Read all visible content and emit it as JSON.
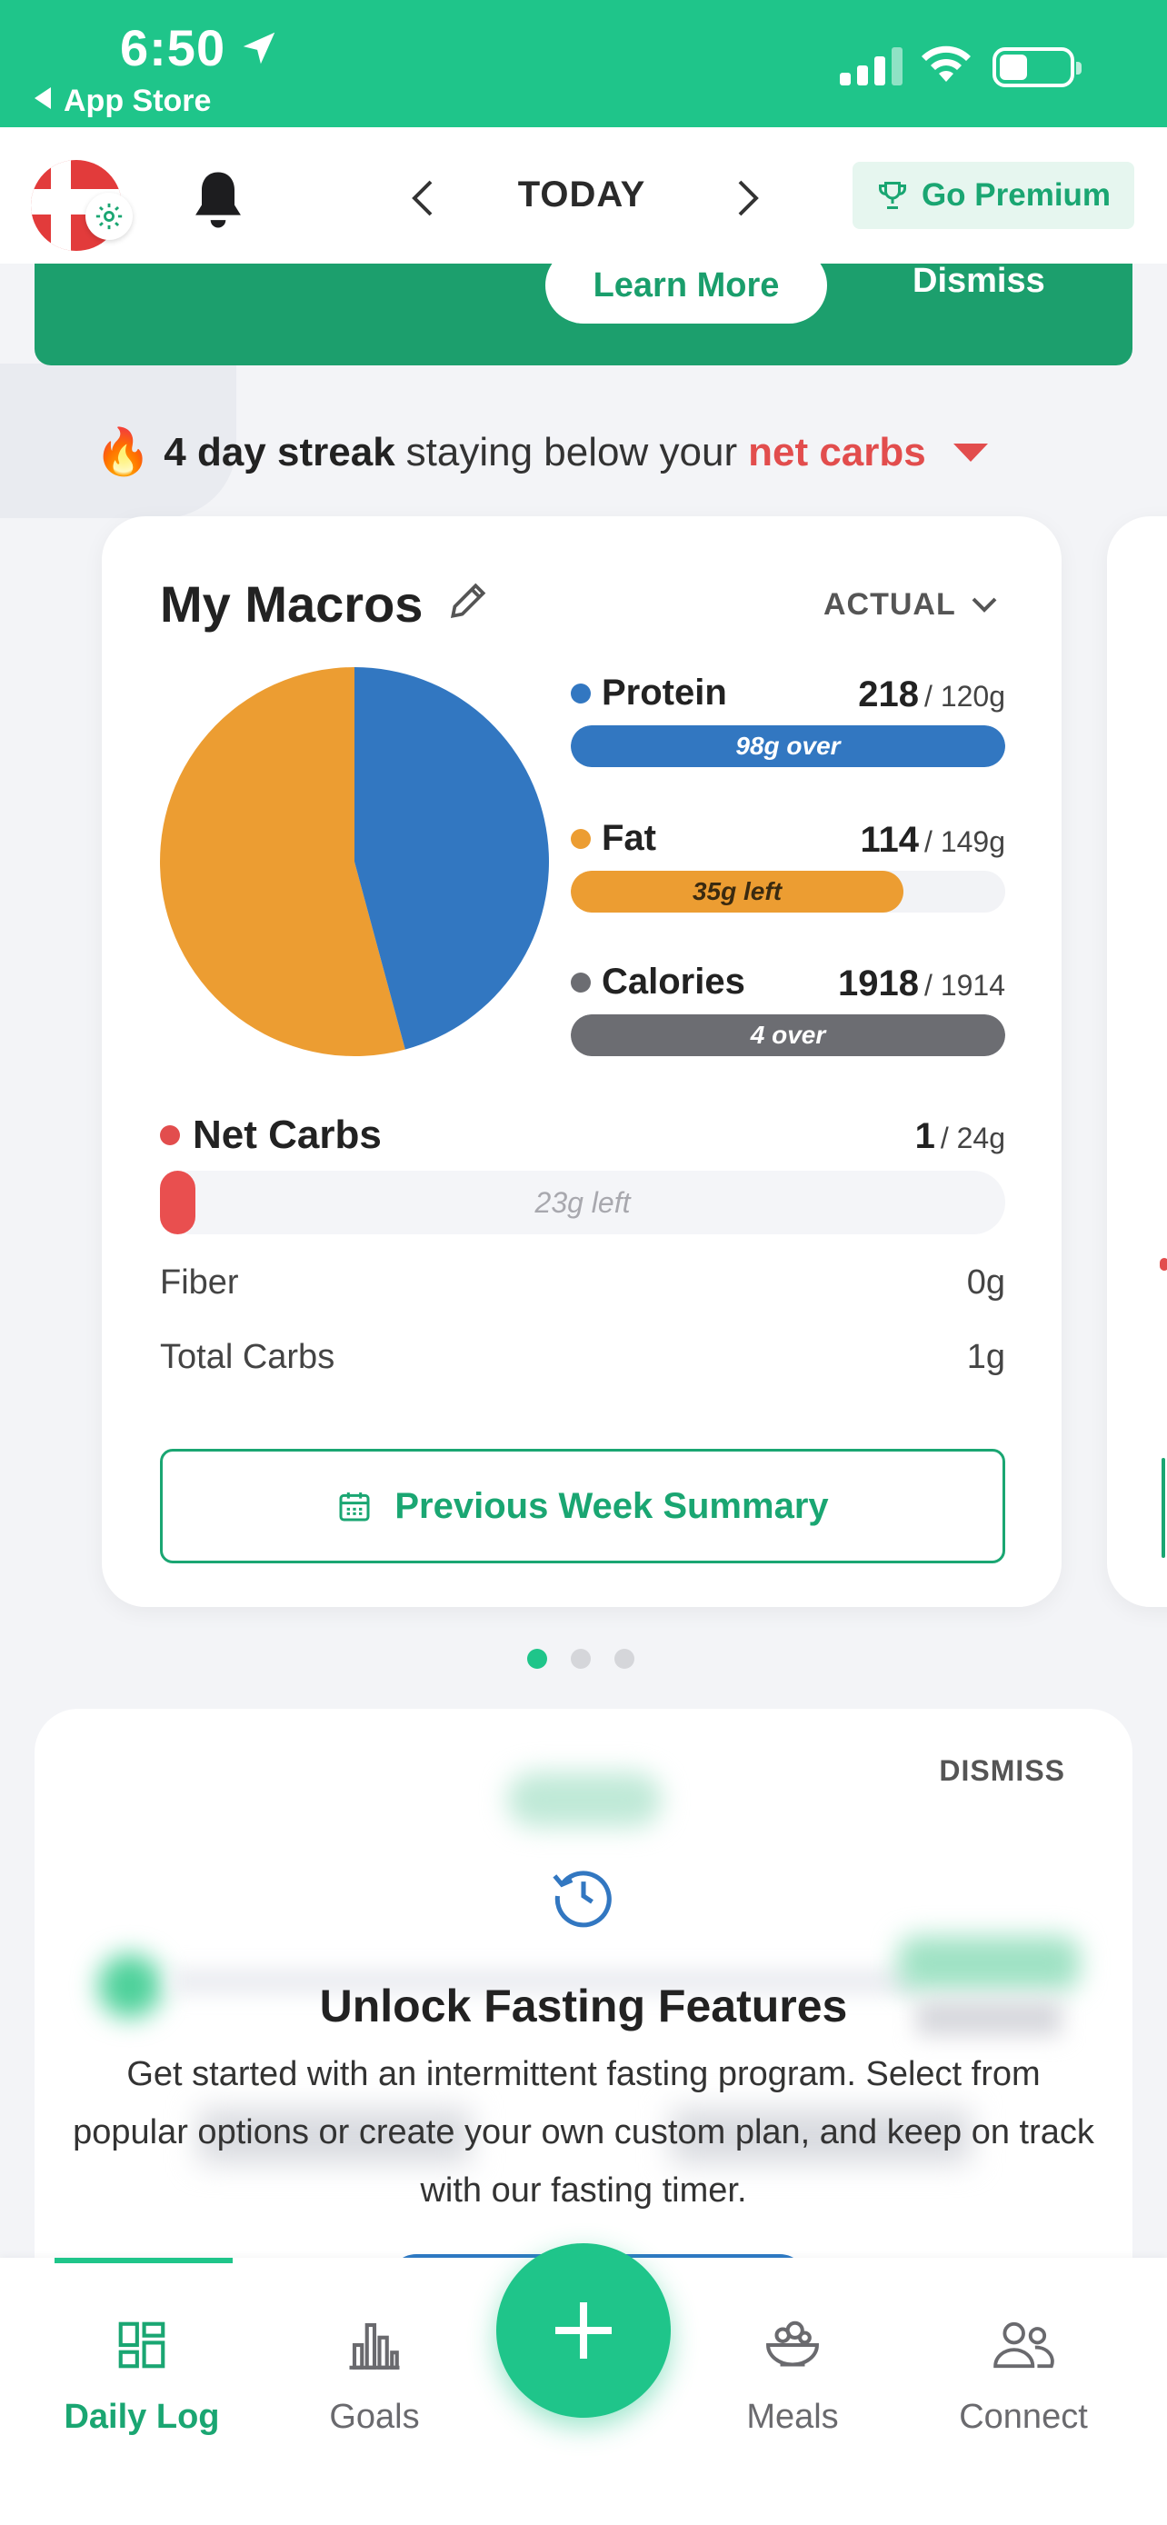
{
  "status_bar": {
    "time": "6:50",
    "back_label": "App Store"
  },
  "header": {
    "date_label": "TODAY",
    "premium_label": "Go Premium"
  },
  "promo": {
    "learn_more": "Learn More",
    "dismiss": "Dismiss"
  },
  "streak": {
    "icon": "🔥",
    "bold": "4 day streak",
    "text": "staying below your",
    "highlight": "net carbs"
  },
  "macros": {
    "title": "My Macros",
    "mode": "ACTUAL",
    "colors": {
      "protein": "#3277c1",
      "fat": "#ec9d32",
      "calories": "#6c6d72",
      "net_carbs": "#e94f4f"
    },
    "protein": {
      "label": "Protein",
      "value": "218",
      "target": "/ 120g",
      "bar_text": "98g over",
      "progress": 1.0
    },
    "fat": {
      "label": "Fat",
      "value": "114",
      "target": "/ 149g",
      "bar_text": "35g left",
      "progress": 0.765
    },
    "calories": {
      "label": "Calories",
      "value": "1918",
      "target": "/ 1914",
      "bar_text": "4 over",
      "progress": 1.0
    },
    "net_carbs": {
      "label": "Net Carbs",
      "value": "1",
      "target": "/ 24g",
      "bar_text": "23g left",
      "progress": 0.042
    },
    "fiber": {
      "label": "Fiber",
      "value": "0g"
    },
    "total_carbs": {
      "label": "Total Carbs",
      "value": "1g"
    },
    "pie": {
      "protein_share": 0.458,
      "fat_share": 0.542
    },
    "summary_button": "Previous Week Summary"
  },
  "pager": {
    "count": 3,
    "active": 0
  },
  "fasting": {
    "dismiss": "DISMISS",
    "title": "Unlock Fasting Features",
    "description": "Get started with an intermittent fasting program. Select from popular options or create your own custom plan, and keep on track with our fasting timer."
  },
  "bottom_nav": {
    "tabs": [
      {
        "label": "Daily Log",
        "icon": "daily-log-icon",
        "active": true
      },
      {
        "label": "Goals",
        "icon": "bar-chart-icon",
        "active": false
      },
      {
        "label": "Meals",
        "icon": "meal-bowl-icon",
        "active": false
      },
      {
        "label": "Connect",
        "icon": "people-icon",
        "active": false
      }
    ],
    "add_icon": "plus-icon"
  }
}
